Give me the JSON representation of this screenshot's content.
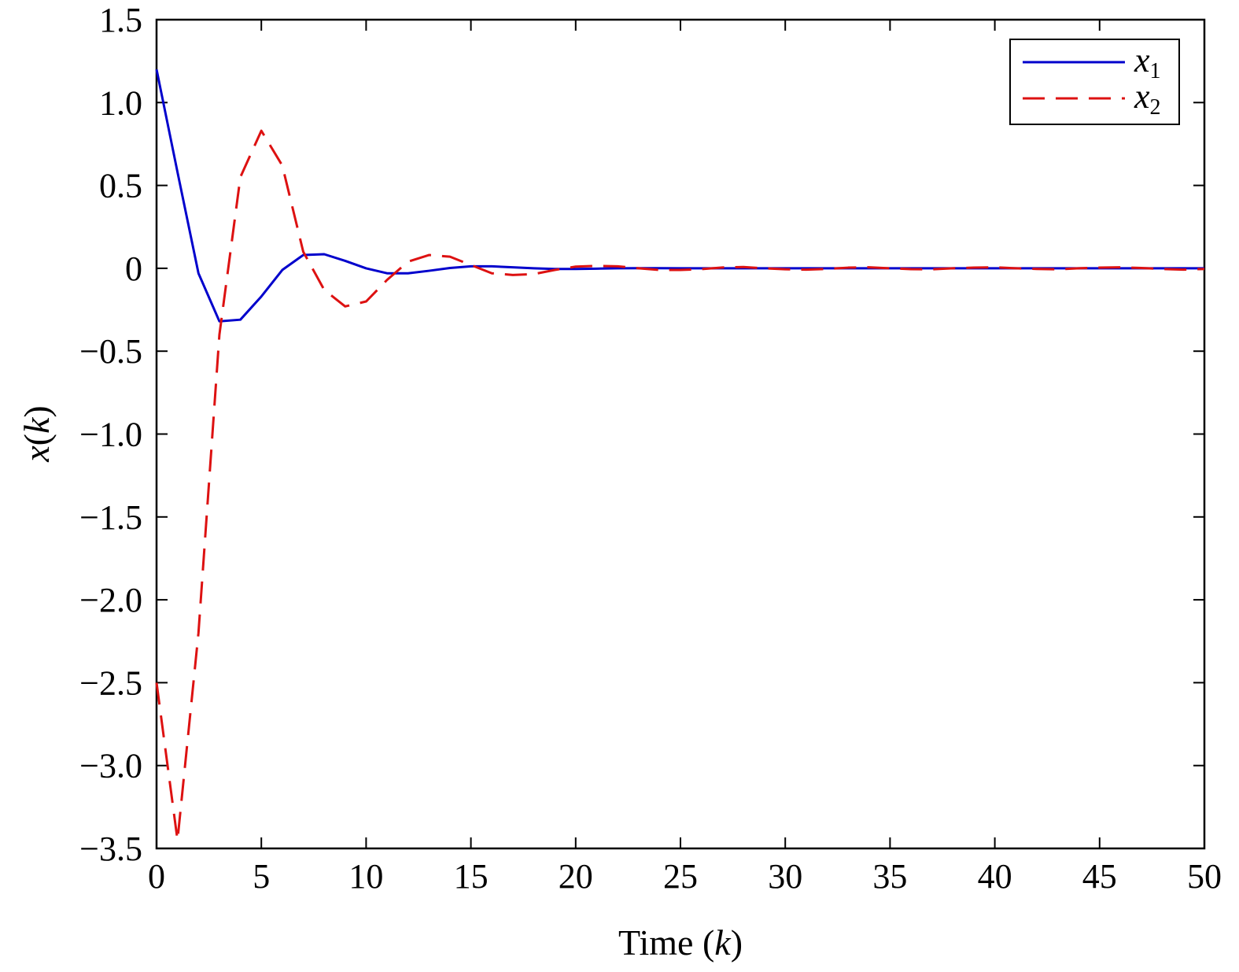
{
  "chart_data": {
    "type": "line",
    "xlabel_prefix": "Time (",
    "xlabel_var": "k",
    "xlabel_suffix": ")",
    "ylabel_var1": "x",
    "ylabel_open": "(",
    "ylabel_var2": "k",
    "ylabel_close": ")",
    "xlim": [
      0,
      50
    ],
    "ylim": [
      -3.5,
      1.5
    ],
    "xticks": [
      0,
      5,
      10,
      15,
      20,
      25,
      30,
      35,
      40,
      45,
      50
    ],
    "yticks": [
      1.5,
      1.0,
      0.5,
      0,
      -0.5,
      -1.0,
      -1.5,
      -2.0,
      -2.5,
      -3.0,
      -3.5
    ],
    "ytick_labels": [
      "1.5",
      "1.0",
      "0.5",
      "0",
      "−0.5",
      "−1.0",
      "−1.5",
      "−2.0",
      "−2.5",
      "−3.0",
      "−3.5"
    ],
    "xtick_labels": [
      "0",
      "5",
      "10",
      "15",
      "20",
      "25",
      "30",
      "35",
      "40",
      "45",
      "50"
    ],
    "grid": false,
    "legend_position": "top-right",
    "x": [
      0,
      1,
      2,
      3,
      4,
      5,
      6,
      7,
      8,
      9,
      10,
      11,
      12,
      13,
      14,
      15,
      16,
      17,
      18,
      19,
      20,
      21,
      22,
      23,
      24,
      25,
      26,
      27,
      28,
      29,
      30,
      31,
      32,
      33,
      34,
      35,
      36,
      37,
      38,
      39,
      40,
      41,
      42,
      43,
      44,
      45,
      46,
      47,
      48,
      49,
      50
    ],
    "series": [
      {
        "name_base": "x",
        "name_sub": "1",
        "color": "#0000cc",
        "dash": "solid",
        "values": [
          1.2,
          0.58,
          -0.03,
          -0.32,
          -0.31,
          -0.17,
          -0.01,
          0.08,
          0.085,
          0.045,
          0.0,
          -0.03,
          -0.03,
          -0.015,
          0.002,
          0.012,
          0.012,
          0.006,
          0.0,
          -0.004,
          -0.004,
          -0.002,
          0.0,
          0.001,
          0.001,
          0.0,
          0.0,
          0.0,
          0.0,
          0.0,
          0.0,
          0.0,
          0.0,
          0.0,
          0.0,
          0.0,
          0.0,
          0.0,
          0.0,
          0.0,
          0.0,
          0.0,
          0.0,
          0.0,
          0.0,
          0.0,
          0.0,
          0.0,
          0.0,
          0.0,
          0.0
        ]
      },
      {
        "name_base": "x",
        "name_sub": "2",
        "color": "#dd1111",
        "dash": "dashed",
        "values": [
          -2.5,
          -3.45,
          -2.2,
          -0.4,
          0.55,
          0.83,
          0.62,
          0.1,
          -0.13,
          -0.23,
          -0.2,
          -0.07,
          0.04,
          0.08,
          0.07,
          0.02,
          -0.03,
          -0.04,
          -0.035,
          -0.01,
          0.01,
          0.015,
          0.012,
          0.0,
          -0.01,
          -0.01,
          -0.005,
          0.005,
          0.008,
          0.0,
          -0.006,
          -0.008,
          -0.004,
          0.004,
          0.006,
          0.0,
          -0.005,
          -0.006,
          0.0,
          0.004,
          0.006,
          0.0,
          -0.004,
          -0.006,
          0.0,
          0.004,
          0.006,
          0.002,
          -0.004,
          -0.008,
          -0.004
        ]
      }
    ]
  }
}
